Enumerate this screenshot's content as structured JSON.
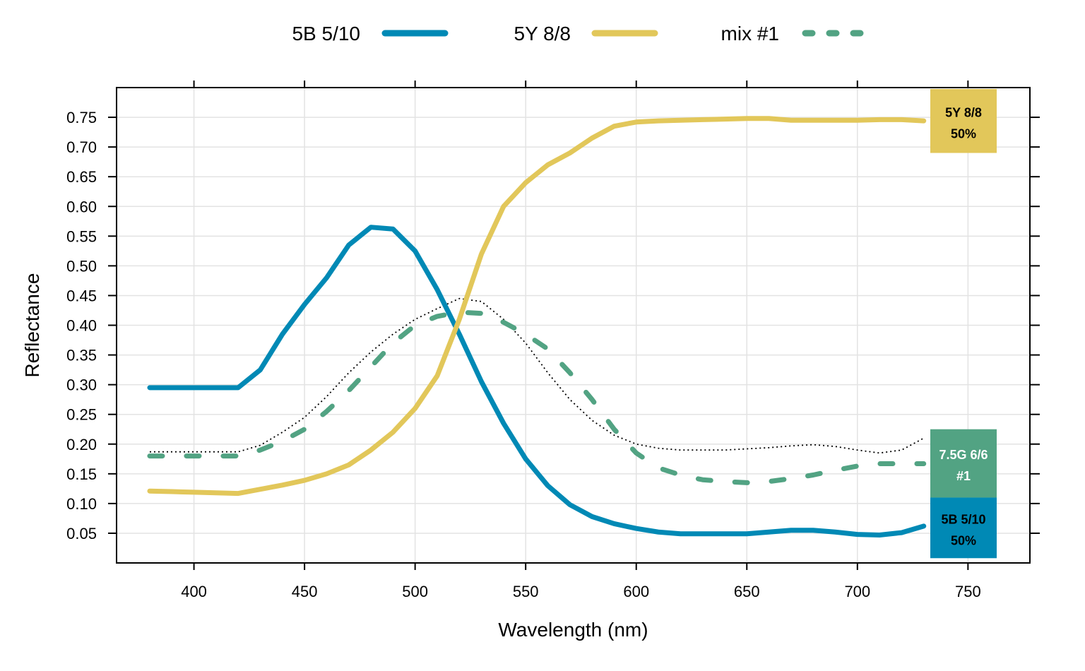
{
  "chart_data": {
    "type": "line",
    "xlabel": "Wavelength (nm)",
    "ylabel": "Reflectance",
    "xlim": [
      365,
      778
    ],
    "ylim": [
      0.0,
      0.8
    ],
    "x_ticks": [
      400,
      450,
      500,
      550,
      600,
      650,
      700,
      750
    ],
    "y_ticks": [
      0.05,
      0.1,
      0.15,
      0.2,
      0.25,
      0.3,
      0.35,
      0.4,
      0.45,
      0.5,
      0.55,
      0.6,
      0.65,
      0.7,
      0.75
    ],
    "grid": true,
    "legend_position": "top",
    "x": [
      380,
      390,
      400,
      410,
      420,
      430,
      440,
      450,
      460,
      470,
      480,
      490,
      500,
      510,
      520,
      530,
      540,
      550,
      560,
      570,
      580,
      590,
      600,
      610,
      620,
      630,
      640,
      650,
      660,
      670,
      680,
      690,
      700,
      710,
      720,
      730
    ],
    "series": [
      {
        "name": "5B 5/10",
        "color": "#0089B5",
        "style": "solid",
        "values": [
          0.295,
          0.295,
          0.295,
          0.295,
          0.295,
          0.325,
          0.385,
          0.435,
          0.48,
          0.535,
          0.565,
          0.562,
          0.525,
          0.46,
          0.385,
          0.305,
          0.235,
          0.175,
          0.13,
          0.098,
          0.078,
          0.066,
          0.058,
          0.052,
          0.049,
          0.049,
          0.049,
          0.049,
          0.052,
          0.055,
          0.055,
          0.052,
          0.048,
          0.047,
          0.051,
          0.062
        ]
      },
      {
        "name": "5Y 8/8",
        "color": "#E2C75A",
        "style": "solid",
        "values": [
          0.121,
          0.12,
          0.119,
          0.118,
          0.117,
          0.124,
          0.131,
          0.139,
          0.15,
          0.165,
          0.19,
          0.22,
          0.26,
          0.315,
          0.41,
          0.52,
          0.6,
          0.64,
          0.67,
          0.69,
          0.715,
          0.735,
          0.742,
          0.744,
          0.745,
          0.746,
          0.747,
          0.748,
          0.748,
          0.745,
          0.745,
          0.745,
          0.745,
          0.746,
          0.746,
          0.744
        ]
      },
      {
        "name": "mix #1",
        "color": "#52A383",
        "style": "dashed",
        "values": [
          0.18,
          0.18,
          0.18,
          0.18,
          0.18,
          0.19,
          0.205,
          0.225,
          0.255,
          0.29,
          0.33,
          0.37,
          0.4,
          0.415,
          0.422,
          0.42,
          0.405,
          0.385,
          0.36,
          0.32,
          0.275,
          0.225,
          0.185,
          0.16,
          0.148,
          0.14,
          0.137,
          0.135,
          0.137,
          0.142,
          0.148,
          0.156,
          0.163,
          0.167,
          0.167,
          0.167
        ]
      },
      {
        "name": "",
        "color": "#000000",
        "style": "dotted",
        "values": [
          0.187,
          0.187,
          0.187,
          0.187,
          0.187,
          0.198,
          0.22,
          0.245,
          0.28,
          0.32,
          0.355,
          0.385,
          0.41,
          0.428,
          0.445,
          0.44,
          0.41,
          0.37,
          0.32,
          0.275,
          0.24,
          0.215,
          0.2,
          0.193,
          0.19,
          0.19,
          0.19,
          0.192,
          0.194,
          0.197,
          0.199,
          0.196,
          0.19,
          0.185,
          0.19,
          0.21
        ]
      }
    ],
    "swatches": [
      {
        "line1": "5Y 8/8",
        "line2": "50%",
        "color": "#E2C75A",
        "text_color": "#000000",
        "y_top": 0.8,
        "y_bottom": 0.69
      },
      {
        "line1": "7.5G 6/6",
        "line2": "#1",
        "color": "#52A383",
        "text_color": "#FFFFFF",
        "y_top": 0.225,
        "y_bottom": 0.11
      },
      {
        "line1": "5B 5/10",
        "line2": "50%",
        "color": "#0089B5",
        "text_color": "#000000",
        "y_top": 0.11,
        "y_bottom": 0.008
      }
    ]
  }
}
